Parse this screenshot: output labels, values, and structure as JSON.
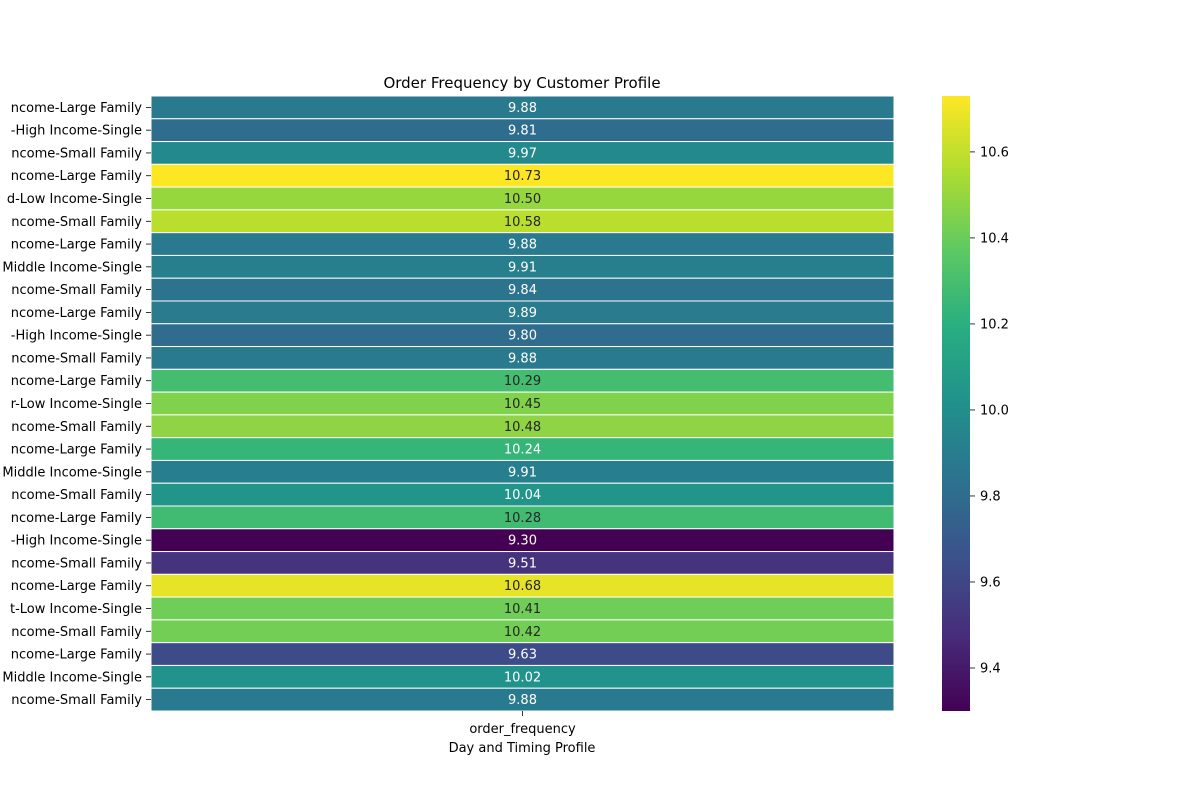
{
  "chart_data": {
    "type": "heatmap",
    "title": "Order Frequency by Customer Profile",
    "xlabel": "Day and Timing Profile",
    "ylabel": "",
    "x_categories": [
      "order_frequency"
    ],
    "y_categories": [
      "ncome-Large Family",
      "-High Income-Single",
      "ncome-Small Family",
      "ncome-Large Family",
      "d-Low Income-Single",
      "ncome-Small Family",
      "ncome-Large Family",
      "Middle Income-Single",
      "ncome-Small Family",
      "ncome-Large Family",
      "-High Income-Single",
      "ncome-Small Family",
      "ncome-Large Family",
      "r-Low Income-Single",
      "ncome-Small Family",
      "ncome-Large Family",
      "Middle Income-Single",
      "ncome-Small Family",
      "ncome-Large Family",
      "-High Income-Single",
      "ncome-Small Family",
      "ncome-Large Family",
      "t-Low Income-Single",
      "ncome-Small Family",
      "ncome-Large Family",
      "Middle Income-Single",
      "ncome-Small Family"
    ],
    "values": [
      9.88,
      9.81,
      9.97,
      10.73,
      10.5,
      10.58,
      9.88,
      9.91,
      9.84,
      9.89,
      9.8,
      9.88,
      10.29,
      10.45,
      10.48,
      10.24,
      9.91,
      10.04,
      10.28,
      9.3,
      9.51,
      10.68,
      10.41,
      10.42,
      9.63,
      10.02,
      9.88
    ],
    "value_labels": [
      "9.88",
      "9.81",
      "9.97",
      "10.73",
      "10.50",
      "10.58",
      "9.88",
      "9.91",
      "9.84",
      "9.89",
      "9.80",
      "9.88",
      "10.29",
      "10.45",
      "10.48",
      "10.24",
      "9.91",
      "10.04",
      "10.28",
      "9.30",
      "9.51",
      "10.68",
      "10.41",
      "10.42",
      "9.63",
      "10.02",
      "9.88"
    ],
    "colormap": "viridis",
    "colorbar": {
      "range": [
        9.3,
        10.73
      ],
      "ticks": [
        9.4,
        9.6,
        9.8,
        10.0,
        10.2,
        10.4,
        10.6
      ],
      "tick_labels": [
        "9.4",
        "9.6",
        "9.8",
        "10.0",
        "10.2",
        "10.4",
        "10.6"
      ]
    }
  }
}
